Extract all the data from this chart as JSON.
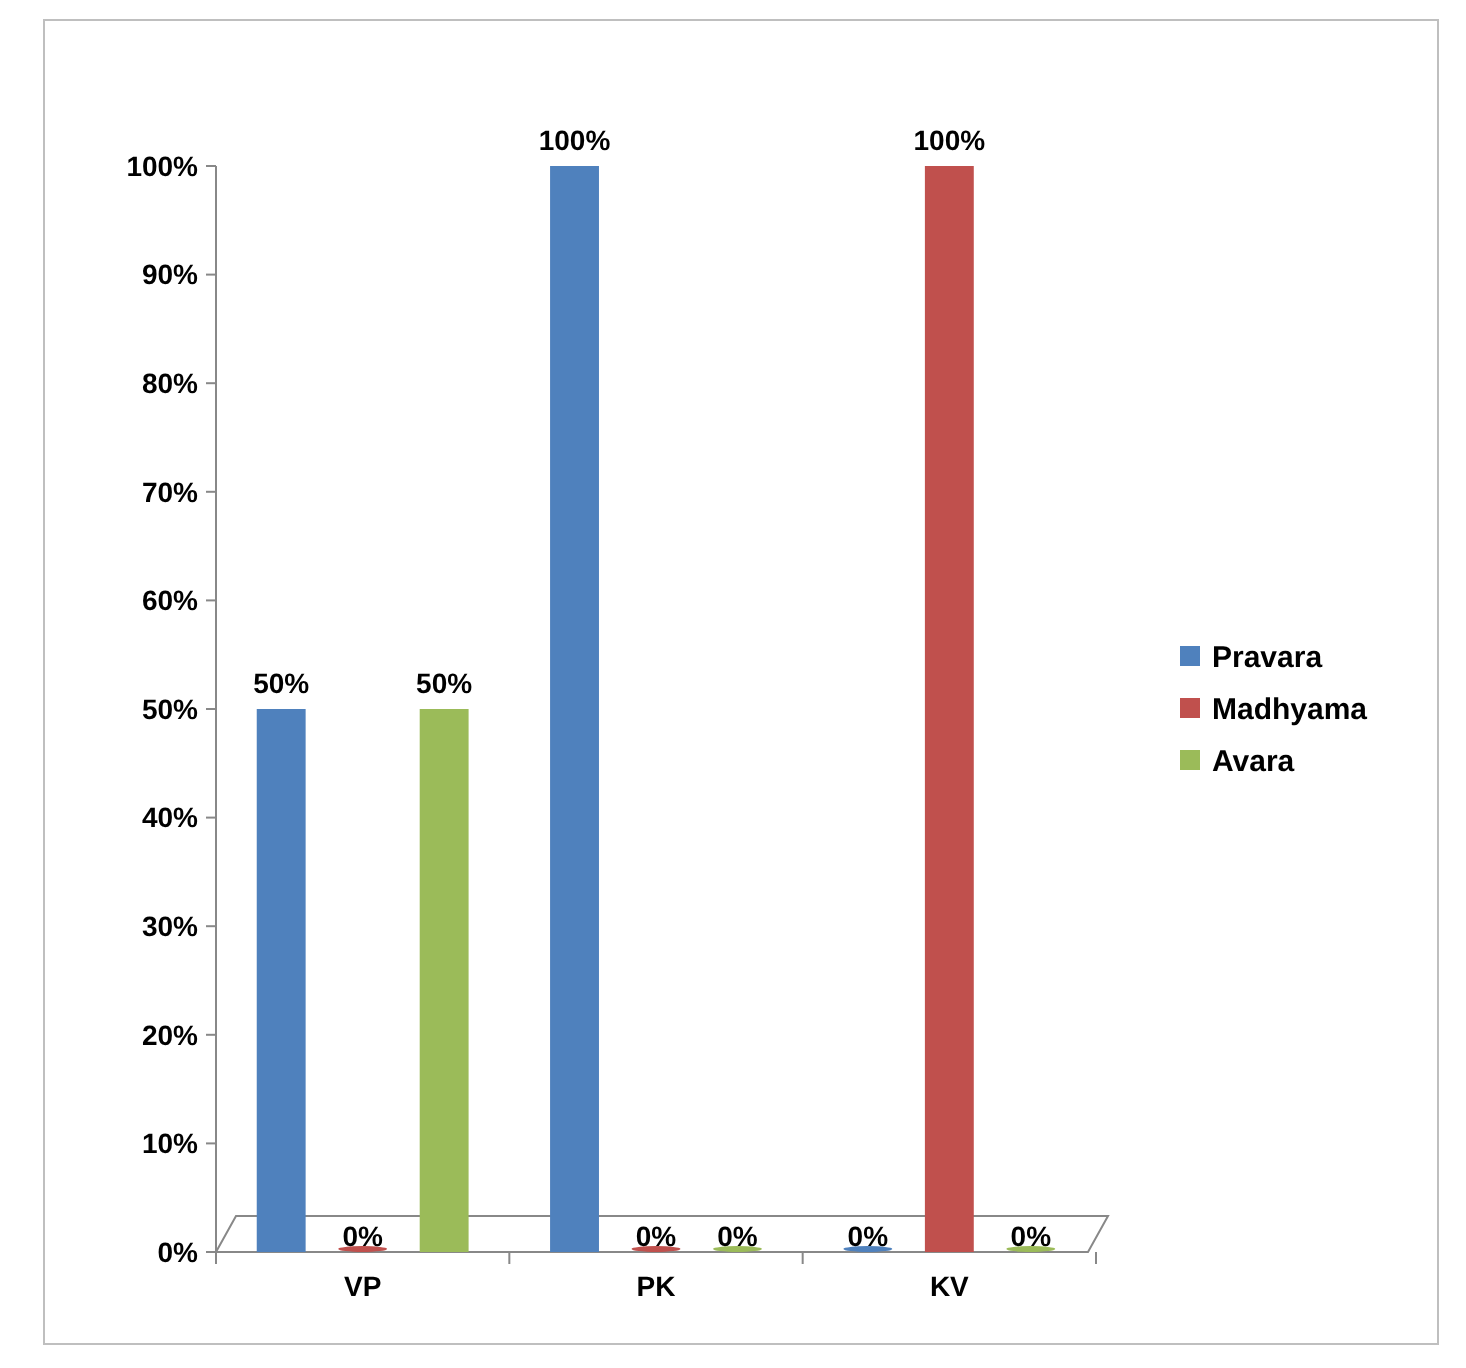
{
  "chart_data": {
    "type": "bar",
    "categories": [
      "VP",
      "PK",
      "KV"
    ],
    "series": [
      {
        "name": "Pravara",
        "color": "#4f81bd",
        "values": [
          50,
          100,
          0
        ],
        "value_labels": [
          "50%",
          "100%",
          "0%"
        ]
      },
      {
        "name": "Madhyama",
        "color": "#c0504d",
        "values": [
          0,
          0,
          100
        ],
        "value_labels": [
          "0%",
          "0%",
          "100%"
        ]
      },
      {
        "name": "Avara",
        "color": "#9bbb59",
        "values": [
          50,
          0,
          0
        ],
        "value_labels": [
          "50%",
          "0%",
          "0%"
        ]
      }
    ],
    "ylim": [
      0,
      100
    ],
    "yticks": [
      {
        "value": 0,
        "label": "0%"
      },
      {
        "value": 10,
        "label": "10%"
      },
      {
        "value": 20,
        "label": "20%"
      },
      {
        "value": 30,
        "label": "30%"
      },
      {
        "value": 40,
        "label": "40%"
      },
      {
        "value": 50,
        "label": "50%"
      },
      {
        "value": 60,
        "label": "60%"
      },
      {
        "value": 70,
        "label": "70%"
      },
      {
        "value": 80,
        "label": "80%"
      },
      {
        "value": 90,
        "label": "90%"
      },
      {
        "value": 100,
        "label": "100%"
      }
    ],
    "legend": "right",
    "grid": false
  }
}
